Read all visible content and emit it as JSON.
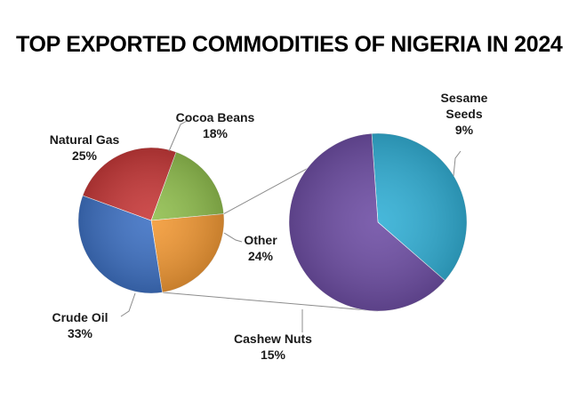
{
  "chart_data": {
    "type": "pie",
    "title": "TOP EXPORTED COMMODITIES OF NIGERIA IN 2024",
    "slices": [
      {
        "name": "Cocoa Beans",
        "value_label": "18%",
        "value": 18,
        "color": "#92c050"
      },
      {
        "name": "Other",
        "value_label": "24%",
        "value": 24,
        "color": "#f39a36"
      },
      {
        "name": "Crude Oil",
        "value_label": "33%",
        "value": 33,
        "color": "#3f72c4"
      },
      {
        "name": "Natural Gas",
        "value_label": "25%",
        "value": 25,
        "color": "#c83a3a"
      }
    ],
    "breakdown_of": "Other",
    "breakdown": [
      {
        "name": "Sesame Seeds",
        "label_lines": [
          "Sesame",
          "Seeds"
        ],
        "value_label": "9%",
        "value": 9,
        "color": "#33b0d6"
      },
      {
        "name": "Cashew Nuts",
        "label_lines": [
          "Cashew Nuts"
        ],
        "value_label": "15%",
        "value": 15,
        "color": "#6f4fa5"
      }
    ]
  }
}
